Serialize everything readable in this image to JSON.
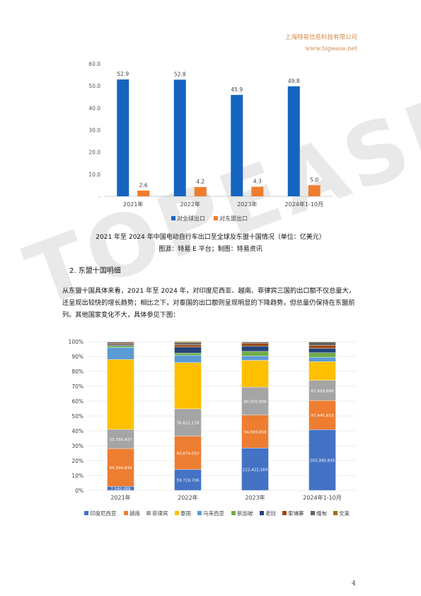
{
  "header": {
    "company": "上海特易信息科技有限公司",
    "website": "www.topease.net"
  },
  "watermark": "TOPEASE",
  "chart_data": [
    {
      "type": "bar",
      "categories": [
        "2021年",
        "2022年",
        "2023年",
        "2024年1-10月"
      ],
      "series": [
        {
          "name": "对全球出口",
          "values": [
            52.9,
            52.8,
            45.9,
            49.8
          ],
          "color": "#1565c0"
        },
        {
          "name": "对东盟出口",
          "values": [
            2.6,
            4.2,
            4.3,
            5.0
          ],
          "color": "#ef7d2f"
        }
      ],
      "ylim": [
        0,
        60
      ],
      "yticks": [
        "-",
        "10.0",
        "20.0",
        "30.0",
        "40.0",
        "50.0",
        "60.0"
      ],
      "data_labels": [
        [
          "52.9",
          "52.8",
          "45.9",
          "49.8"
        ],
        [
          "2.6",
          "4.2",
          "4.3",
          "5.0"
        ]
      ],
      "legend_position": "bottom",
      "grid": false
    },
    {
      "type": "bar",
      "stacked": "percent",
      "categories": [
        "2021年",
        "2022年",
        "2023年",
        "2024年1-10月"
      ],
      "yticks": [
        "0%",
        "10%",
        "20%",
        "30%",
        "40%",
        "50%",
        "60%",
        "70%",
        "80%",
        "90%",
        "100%"
      ],
      "series": [
        {
          "name": "印度尼西亚",
          "color": "#4472c4",
          "shares": [
            0.027,
            0.141,
            0.285,
            0.408
          ],
          "labels": [
            "7,540,488",
            "59,710,706",
            "122,422,160",
            "203,395,835"
          ]
        },
        {
          "name": "越南",
          "color": "#ed7d31",
          "shares": [
            0.254,
            0.224,
            0.221,
            0.196
          ],
          "labels": [
            "64,304,834",
            "93,874,050",
            "94,949,658",
            "97,445,653"
          ]
        },
        {
          "name": "菲律宾",
          "color": "#a5a5a5",
          "shares": [
            0.129,
            0.183,
            0.188,
            0.136
          ],
          "labels": [
            "33,766,437",
            "76,621,139",
            "80,350,908",
            "67,649,888"
          ]
        },
        {
          "name": "泰国",
          "color": "#ffc000",
          "shares": [
            0.47,
            0.31,
            0.18,
            0.125
          ],
          "labels": [
            "",
            "",
            "",
            ""
          ]
        },
        {
          "name": "马来西亚",
          "color": "#5b9bd5",
          "shares": [
            0.08,
            0.05,
            0.03,
            0.03
          ],
          "labels": [
            "",
            "",
            "",
            ""
          ]
        },
        {
          "name": "新加坡",
          "color": "#70ad47",
          "shares": [
            0.012,
            0.015,
            0.03,
            0.03
          ],
          "labels": [
            "",
            "",
            "",
            ""
          ]
        },
        {
          "name": "老挝",
          "color": "#264478",
          "shares": [
            0.008,
            0.04,
            0.036,
            0.03
          ],
          "labels": [
            "",
            "",
            "",
            ""
          ]
        },
        {
          "name": "柬埔寨",
          "color": "#9e480e",
          "shares": [
            0.008,
            0.015,
            0.02,
            0.02
          ],
          "labels": [
            "",
            "",
            "",
            ""
          ]
        },
        {
          "name": "缅甸",
          "color": "#636363",
          "shares": [
            0.01,
            0.016,
            0.008,
            0.022
          ],
          "labels": [
            "",
            "",
            "",
            ""
          ]
        },
        {
          "name": "文莱",
          "color": "#997300",
          "shares": [
            0.002,
            0.006,
            0.002,
            0.003
          ],
          "labels": [
            "",
            "",
            "",
            ""
          ]
        }
      ],
      "legend_position": "bottom",
      "grid": true
    }
  ],
  "caption1": "2021 年至 2024 年中国电动自行车出口至全球及东盟十国情况（单位：亿美元）",
  "caption2": "图源：特易 E 平台；制图：特易资讯",
  "section_heading": "2. 东盟十国明细",
  "paragraph": "从东盟十国具体来看，2021 年至 2024 年，对印度尼西亚、越南、菲律宾三国的出口额不仅总量大，还呈现出较快的增长趋势；相比之下，对泰国的出口额则呈现明显的下降趋势，但总量仍保持在东盟前列。其他国家变化不大，具体参见下图：",
  "page_number": "4"
}
